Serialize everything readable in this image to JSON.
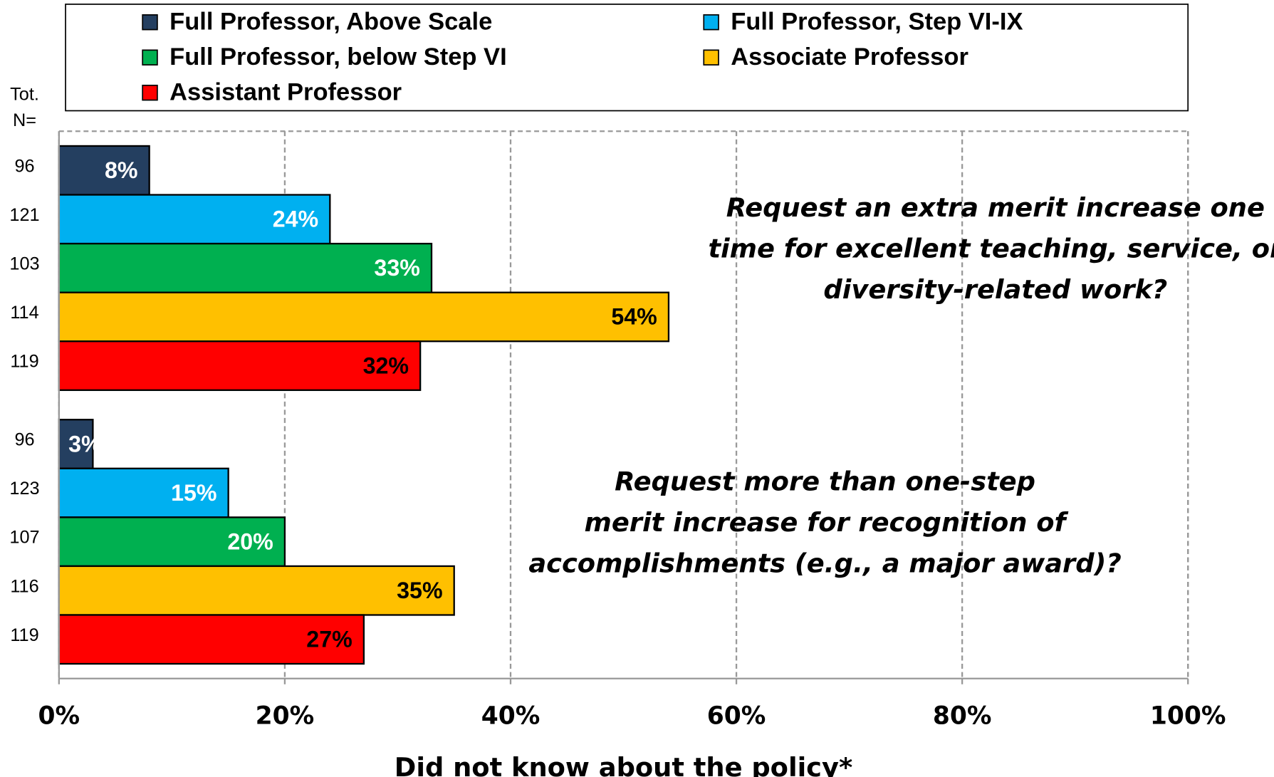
{
  "chart_data": {
    "type": "bar",
    "orientation": "horizontal",
    "categories": [
      [
        "Request an extra merit increase one",
        "time for excellent teaching, service, or",
        "diversity-related work?"
      ],
      [
        "Request more than one-step",
        "merit increase for recognition of",
        "accomplishments (e.g., a major award)?"
      ]
    ],
    "series": [
      {
        "name": "Full Professor, Above Scale",
        "color": "#243f60",
        "label_color": "#ffffff",
        "values": [
          8,
          3
        ],
        "value_labels": [
          "8%",
          "3%"
        ],
        "n": [
          96,
          96
        ]
      },
      {
        "name": "Full Professor, Step VI-IX",
        "color": "#00b0f0",
        "label_color": "#ffffff",
        "values": [
          24,
          15
        ],
        "value_labels": [
          "24%",
          "15%"
        ],
        "n": [
          121,
          123
        ]
      },
      {
        "name": "Full Professor, below Step VI",
        "color": "#00b050",
        "label_color": "#ffffff",
        "values": [
          33,
          20
        ],
        "value_labels": [
          "33%",
          "20%"
        ],
        "n": [
          103,
          107
        ]
      },
      {
        "name": "Associate Professor",
        "color": "#ffc000",
        "label_color": "#000000",
        "values": [
          54,
          35
        ],
        "value_labels": [
          "54%",
          "35%"
        ],
        "n": [
          114,
          116
        ]
      },
      {
        "name": "Assistant Professor",
        "color": "#ff0000",
        "label_color": "#000000",
        "values": [
          32,
          27
        ],
        "value_labels": [
          "32%",
          "27%"
        ],
        "n": [
          119,
          119
        ]
      }
    ],
    "n_label": [
      "Tot.",
      "N="
    ],
    "xlabel": "Did not know about the policy*",
    "xlim": [
      0,
      100
    ],
    "xticks": [
      {
        "value": 0,
        "label": "0%"
      },
      {
        "value": 20,
        "label": "20%"
      },
      {
        "value": 40,
        "label": "40%"
      },
      {
        "value": 60,
        "label": "60%"
      },
      {
        "value": 80,
        "label": "80%"
      },
      {
        "value": 100,
        "label": "100%"
      }
    ],
    "grid": true,
    "legend": "top"
  }
}
